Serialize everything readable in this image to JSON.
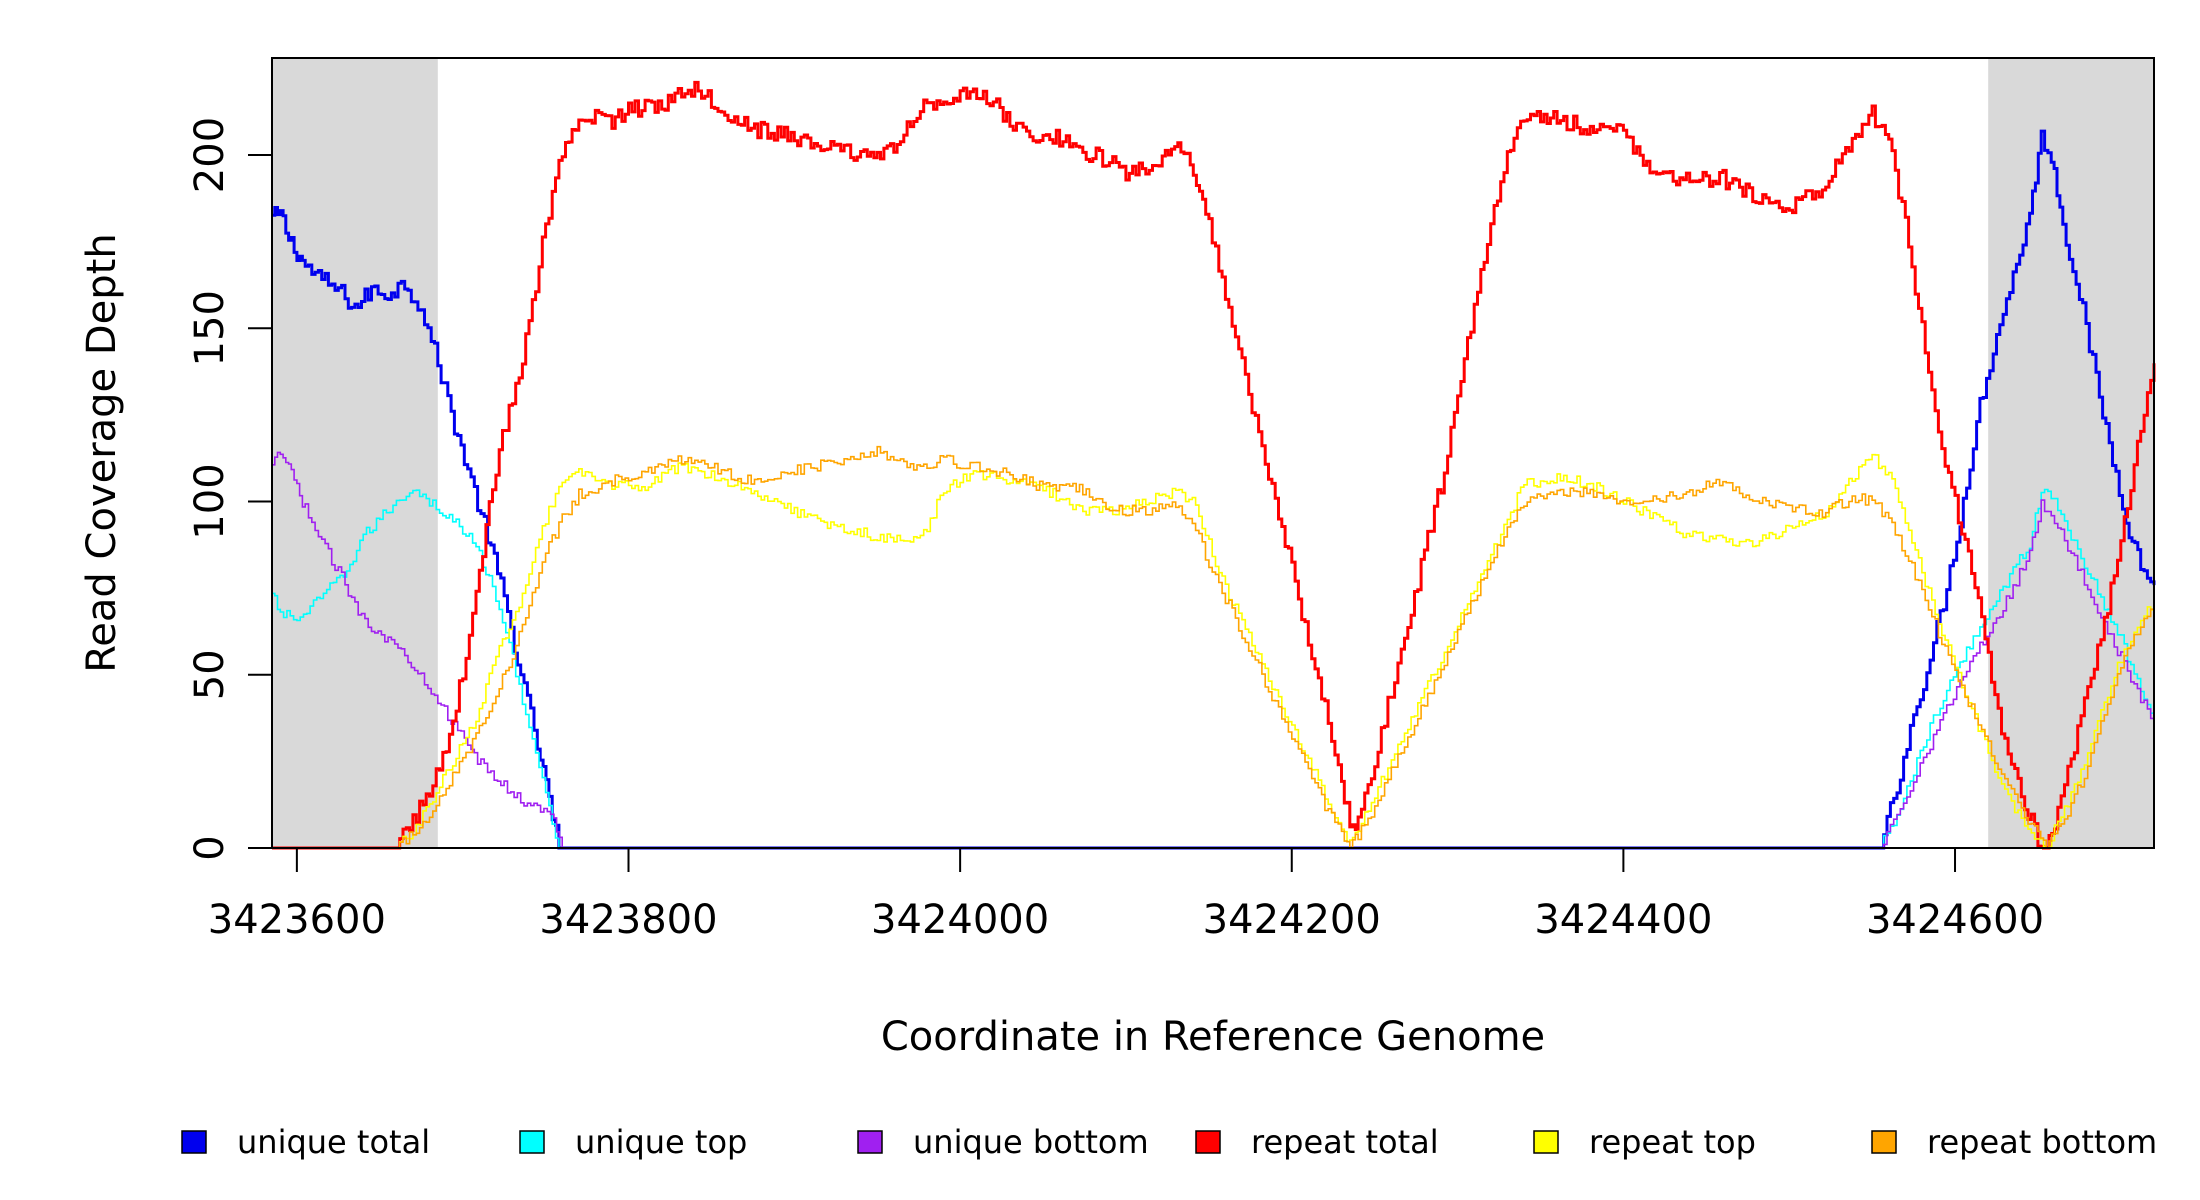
{
  "chart_data": {
    "type": "line",
    "title": "",
    "xlabel": "Coordinate in Reference Genome",
    "ylabel": "Read Coverage Depth",
    "xlim": [
      3423585,
      3424720
    ],
    "ylim": [
      0,
      228
    ],
    "xticks": [
      3423600,
      3423800,
      3424000,
      3424200,
      3424400,
      3424600
    ],
    "xtick_labels": [
      "3423600",
      "3423800",
      "3424000",
      "3424200",
      "3424400",
      "3424600"
    ],
    "yticks": [
      0,
      50,
      100,
      150,
      200
    ],
    "ytick_labels": [
      "0",
      "50",
      "100",
      "150",
      "200"
    ],
    "shaded_regions": [
      [
        3423585,
        3423685
      ],
      [
        3424620,
        3424720
      ]
    ],
    "grid": false,
    "legend_position": "bottom",
    "series": [
      {
        "name": "unique total",
        "color": "#0000ee",
        "x": [
          3423585,
          3423590,
          3423595,
          3423600,
          3423605,
          3423615,
          3423625,
          3423635,
          3423645,
          3423655,
          3423665,
          3423675,
          3423685,
          3423695,
          3423705,
          3423715,
          3423725,
          3423735,
          3423745,
          3423752,
          3423758,
          3423765,
          3423800,
          3424000,
          3424200,
          3424400,
          3424500,
          3424555,
          3424565,
          3424575,
          3424585,
          3424595,
          3424605,
          3424615,
          3424625,
          3424635,
          3424645,
          3424652,
          3424658,
          3424665,
          3424675,
          3424685,
          3424695,
          3424705,
          3424712,
          3424720
        ],
        "y": [
          182,
          183,
          176,
          172,
          168,
          164,
          161,
          156,
          161,
          160,
          163,
          156,
          140,
          122,
          106,
          90,
          72,
          50,
          30,
          14,
          0,
          0,
          0,
          0,
          0,
          0,
          0,
          0,
          18,
          38,
          55,
          75,
          100,
          128,
          148,
          165,
          183,
          205,
          200,
          180,
          160,
          135,
          112,
          92,
          82,
          75
        ]
      },
      {
        "name": "unique top",
        "color": "#00ffff",
        "x": [
          3423585,
          3423590,
          3423600,
          3423610,
          3423620,
          3423630,
          3423640,
          3423650,
          3423660,
          3423670,
          3423680,
          3423690,
          3423700,
          3423710,
          3423720,
          3423730,
          3423740,
          3423750,
          3423758,
          3423765,
          3424000,
          3424200,
          3424555,
          3424565,
          3424575,
          3424585,
          3424595,
          3424605,
          3424615,
          3424625,
          3424635,
          3424645,
          3424652,
          3424660,
          3424670,
          3424680,
          3424690,
          3424700,
          3424710,
          3424720
        ],
        "y": [
          73,
          68,
          66,
          70,
          75,
          80,
          90,
          95,
          100,
          104,
          100,
          96,
          92,
          85,
          72,
          55,
          35,
          15,
          0,
          0,
          0,
          0,
          0,
          10,
          22,
          35,
          45,
          55,
          64,
          72,
          80,
          88,
          103,
          100,
          90,
          80,
          70,
          60,
          48,
          38
        ]
      },
      {
        "name": "unique bottom",
        "color": "#a020f0",
        "x": [
          3423585,
          3423590,
          3423595,
          3423600,
          3423605,
          3423615,
          3423625,
          3423635,
          3423645,
          3423655,
          3423665,
          3423675,
          3423685,
          3423695,
          3423705,
          3423715,
          3423725,
          3423735,
          3423745,
          3423755,
          3423760,
          3423765,
          3424200,
          3424555,
          3424565,
          3424575,
          3424585,
          3424595,
          3424605,
          3424615,
          3424625,
          3424635,
          3424645,
          3424652,
          3424660,
          3424670,
          3424680,
          3424690,
          3424700,
          3424710,
          3424720
        ],
        "y": [
          110,
          114,
          110,
          104,
          98,
          88,
          80,
          70,
          64,
          60,
          56,
          50,
          43,
          35,
          28,
          22,
          18,
          14,
          12,
          8,
          0,
          0,
          0,
          0,
          10,
          20,
          30,
          40,
          50,
          58,
          66,
          75,
          86,
          99,
          95,
          85,
          75,
          65,
          55,
          45,
          36
        ]
      },
      {
        "name": "repeat total",
        "color": "#ff0000",
        "x": [
          3423585,
          3423660,
          3423670,
          3423680,
          3423690,
          3423700,
          3423710,
          3423720,
          3423730,
          3423740,
          3423750,
          3423760,
          3423770,
          3423780,
          3423790,
          3423800,
          3423820,
          3423840,
          3423860,
          3423880,
          3423900,
          3423920,
          3423940,
          3423960,
          3423980,
          3424000,
          3424020,
          3424040,
          3424060,
          3424080,
          3424100,
          3424120,
          3424135,
          3424150,
          3424160,
          3424170,
          3424180,
          3424190,
          3424200,
          3424210,
          3424220,
          3424230,
          3424235,
          3424240,
          3424250,
          3424260,
          3424270,
          3424280,
          3424290,
          3424300,
          3424310,
          3424320,
          3424330,
          3424340,
          3424360,
          3424380,
          3424400,
          3424420,
          3424440,
          3424460,
          3424480,
          3424500,
          3424520,
          3424540,
          3424550,
          3424560,
          3424570,
          3424580,
          3424590,
          3424600,
          3424610,
          3424620,
          3424630,
          3424640,
          3424650,
          3424655,
          3424660,
          3424670,
          3424680,
          3424690,
          3424700,
          3424710,
          3424720
        ],
        "y": [
          0,
          0,
          8,
          16,
          30,
          50,
          80,
          110,
          130,
          150,
          180,
          200,
          208,
          212,
          210,
          213,
          215,
          220,
          212,
          207,
          205,
          202,
          200,
          202,
          215,
          218,
          215,
          205,
          205,
          200,
          195,
          198,
          202,
          180,
          160,
          140,
          120,
          100,
          80,
          60,
          40,
          20,
          6,
          8,
          25,
          45,
          65,
          85,
          105,
          130,
          155,
          180,
          200,
          212,
          210,
          208,
          206,
          195,
          192,
          193,
          188,
          185,
          190,
          205,
          212,
          205,
          180,
          150,
          120,
          100,
          80,
          55,
          30,
          15,
          3,
          0,
          8,
          25,
          45,
          65,
          90,
          115,
          142
        ]
      },
      {
        "name": "repeat top",
        "color": "#ffff00",
        "x": [
          3423585,
          3423660,
          3423670,
          3423680,
          3423690,
          3423700,
          3423710,
          3423720,
          3423730,
          3423740,
          3423750,
          3423760,
          3423770,
          3423790,
          3423810,
          3423830,
          3423850,
          3423870,
          3423890,
          3423910,
          3423930,
          3423950,
          3423970,
          3423980,
          3423990,
          3424010,
          3424030,
          3424050,
          3424070,
          3424090,
          3424110,
          3424130,
          3424140,
          3424150,
          3424160,
          3424170,
          3424180,
          3424190,
          3424200,
          3424210,
          3424220,
          3424230,
          3424235,
          3424240,
          3424250,
          3424260,
          3424270,
          3424280,
          3424290,
          3424300,
          3424310,
          3424320,
          3424330,
          3424340,
          3424360,
          3424380,
          3424400,
          3424420,
          3424440,
          3424460,
          3424480,
          3424500,
          3424520,
          3424540,
          3424550,
          3424560,
          3424570,
          3424580,
          3424590,
          3424600,
          3424610,
          3424620,
          3424630,
          3424640,
          3424650,
          3424655,
          3424660,
          3424670,
          3424680,
          3424690,
          3424700,
          3424710,
          3424720
        ],
        "y": [
          0,
          0,
          5,
          12,
          22,
          30,
          40,
          55,
          65,
          80,
          95,
          105,
          108,
          105,
          104,
          110,
          108,
          104,
          100,
          95,
          92,
          90,
          88,
          92,
          104,
          108,
          106,
          104,
          98,
          97,
          100,
          103,
          100,
          88,
          75,
          65,
          55,
          45,
          35,
          25,
          15,
          5,
          1,
          5,
          15,
          25,
          35,
          45,
          55,
          65,
          75,
          85,
          95,
          105,
          107,
          105,
          100,
          95,
          90,
          89,
          88,
          92,
          96,
          108,
          113,
          108,
          95,
          80,
          65,
          52,
          40,
          28,
          16,
          8,
          2,
          0,
          5,
          15,
          28,
          42,
          55,
          65,
          70
        ]
      },
      {
        "name": "repeat bottom",
        "color": "#ffa500",
        "x": [
          3423585,
          3423660,
          3423670,
          3423680,
          3423690,
          3423700,
          3423710,
          3423720,
          3423730,
          3423740,
          3423750,
          3423760,
          3423770,
          3423790,
          3423810,
          3423830,
          3423850,
          3423870,
          3423890,
          3423910,
          3423930,
          3423950,
          3423970,
          3423990,
          3424010,
          3424030,
          3424050,
          3424070,
          3424090,
          3424110,
          3424130,
          3424140,
          3424150,
          3424160,
          3424170,
          3424180,
          3424190,
          3424200,
          3424210,
          3424220,
          3424230,
          3424235,
          3424240,
          3424250,
          3424260,
          3424270,
          3424280,
          3424290,
          3424300,
          3424310,
          3424320,
          3424330,
          3424340,
          3424360,
          3424380,
          3424400,
          3424420,
          3424440,
          3424460,
          3424480,
          3424500,
          3424520,
          3424540,
          3424550,
          3424560,
          3424570,
          3424580,
          3424590,
          3424600,
          3424610,
          3424620,
          3424630,
          3424640,
          3424650,
          3424655,
          3424660,
          3424670,
          3424680,
          3424690,
          3424700,
          3424710,
          3424720
        ],
        "y": [
          0,
          0,
          4,
          10,
          18,
          25,
          35,
          45,
          55,
          70,
          85,
          95,
          102,
          106,
          108,
          112,
          110,
          106,
          108,
          110,
          112,
          115,
          110,
          112,
          110,
          108,
          104,
          104,
          98,
          97,
          99,
          95,
          82,
          72,
          62,
          52,
          42,
          32,
          22,
          12,
          4,
          0,
          4,
          12,
          22,
          32,
          42,
          52,
          62,
          72,
          82,
          92,
          100,
          103,
          103,
          100,
          100,
          103,
          106,
          100,
          98,
          97,
          101,
          100,
          95,
          85,
          75,
          62,
          50,
          40,
          30,
          20,
          10,
          4,
          0,
          4,
          12,
          24,
          38,
          52,
          62,
          70
        ]
      }
    ]
  },
  "legend": {
    "items": [
      {
        "label": "unique total",
        "color": "#0000ee"
      },
      {
        "label": "unique top",
        "color": "#00ffff"
      },
      {
        "label": "unique bottom",
        "color": "#a020f0"
      },
      {
        "label": "repeat total",
        "color": "#ff0000"
      },
      {
        "label": "repeat top",
        "color": "#ffff00"
      },
      {
        "label": "repeat bottom",
        "color": "#ffa500"
      }
    ]
  }
}
